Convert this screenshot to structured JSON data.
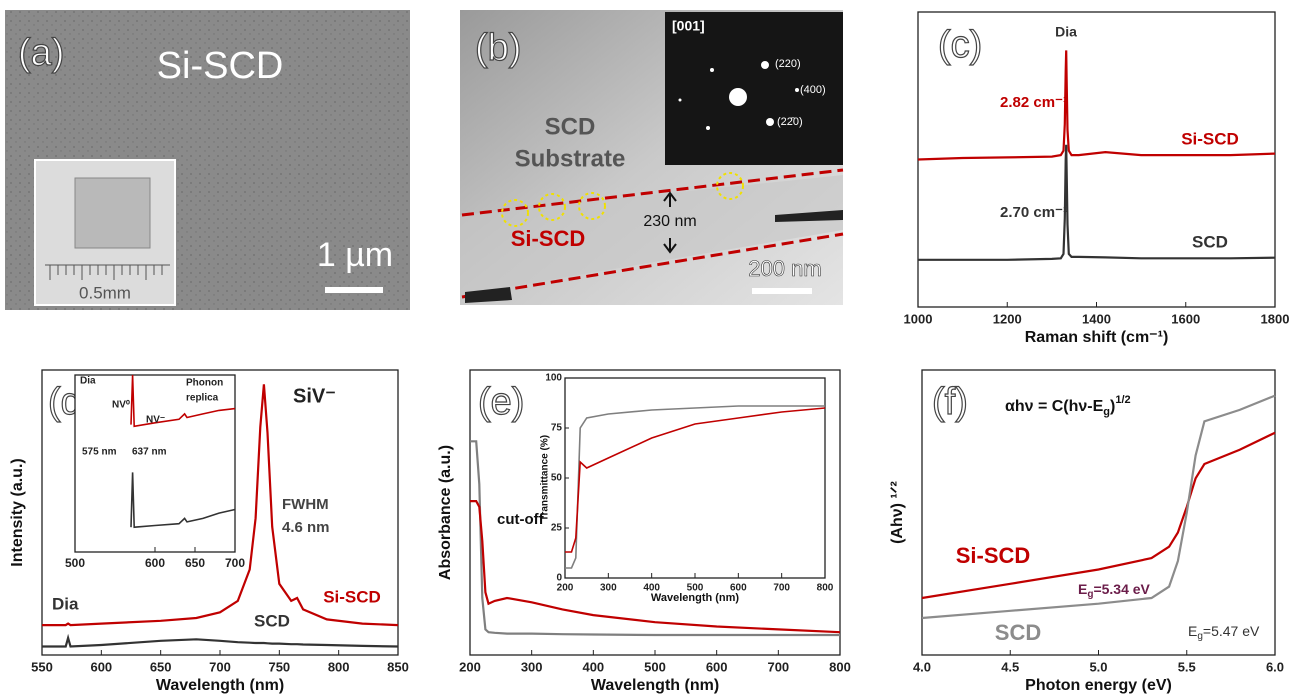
{
  "panels": [
    {
      "label": "(a)",
      "title": "Si-SCD",
      "scale_bar": "1 µm",
      "inset_scale": "0.5mm"
    },
    {
      "label": "(b)",
      "diffraction_zone": "[001]",
      "spots": [
        "(220)",
        "(400)",
        "(22̄0)"
      ],
      "region": [
        "SCD",
        "Substrate"
      ],
      "layer": "Si-SCD",
      "thickness": "230 nm",
      "scale_bar": "200 nm"
    }
  ],
  "chart_data": [
    {
      "type": "line",
      "label": "(c)",
      "xlabel": "Raman shift (cm⁻¹)",
      "xlim": [
        1000,
        1800
      ],
      "xticks": [
        1000,
        1200,
        1400,
        1600,
        1800
      ],
      "ylim": [
        0,
        100
      ],
      "x": [
        1000,
        1100,
        1200,
        1300,
        1320,
        1326,
        1329,
        1331,
        1332,
        1333,
        1335,
        1338,
        1344,
        1360,
        1420,
        1500,
        1600,
        1700,
        1800
      ],
      "series": [
        {
          "name": "Si-SCD",
          "color": "#c00000",
          "values": [
            50,
            50.5,
            50.7,
            51,
            51.5,
            53,
            62,
            80,
            87,
            78,
            60,
            53,
            51.5,
            51.5,
            52.5,
            51.5,
            51.5,
            51.5,
            52
          ]
        },
        {
          "name": "SCD",
          "color": "#333333",
          "values": [
            16,
            16,
            16,
            16.3,
            16.5,
            18,
            30,
            50,
            55,
            47,
            28,
            18,
            17,
            17,
            16.8,
            16.5,
            16.5,
            16.5,
            16.7
          ]
        }
      ],
      "annotations": [
        "Dia",
        "2.82 cm⁻¹",
        "2.70 cm⁻¹"
      ]
    },
    {
      "type": "line",
      "label": "(d)",
      "xlabel": "Wavelength (nm)",
      "ylabel": "Intensity (a.u.)",
      "xlim": [
        550,
        850
      ],
      "xticks": [
        550,
        600,
        650,
        700,
        750,
        800,
        850
      ],
      "ylim": [
        0,
        100
      ],
      "x": [
        550,
        570,
        572,
        574,
        600,
        650,
        680,
        700,
        715,
        725,
        730,
        734,
        737,
        740,
        744,
        750,
        760,
        765,
        770,
        790,
        820,
        850
      ],
      "series": [
        {
          "name": "Si-SCD",
          "color": "#c00000",
          "values": [
            10.5,
            10.5,
            11,
            10.5,
            11,
            12,
            13,
            15,
            19,
            30,
            48,
            80,
            95,
            78,
            45,
            25,
            19,
            20,
            16,
            12.5,
            11,
            10.5
          ]
        },
        {
          "name": "SCD",
          "color": "#333333",
          "values": [
            3,
            3,
            6,
            3,
            3.5,
            5,
            5.5,
            5,
            4.5,
            4.3,
            4.2,
            4.2,
            4.2,
            4.1,
            4,
            4,
            3.8,
            3.8,
            3.7,
            3.5,
            3.2,
            3
          ]
        }
      ],
      "annotations": [
        "SiV⁻",
        "FWHM",
        "4.6 nm",
        "Dia"
      ],
      "inset": {
        "type": "line",
        "xlim": [
          500,
          700
        ],
        "xticks": [
          500,
          600,
          650,
          700
        ],
        "ylim": [
          0,
          100
        ],
        "x": [
          500,
          560,
          570,
          572,
          574,
          600,
          630,
          637,
          640,
          660,
          680,
          700
        ],
        "series": [
          {
            "color": "#c00000",
            "values": [
              null,
              null,
              72,
              100,
              71,
              73,
              75,
              78,
              76,
              78,
              80,
              81
            ]
          },
          {
            "color": "#333333",
            "values": [
              null,
              null,
              14,
              45,
              14,
              15,
              16,
              19,
              17,
              19,
              22,
              24
            ]
          }
        ],
        "annotations": [
          "Dia",
          "NV⁰",
          "NV⁻",
          "575 nm",
          "637 nm",
          "Phonon",
          "replica"
        ]
      }
    },
    {
      "type": "line",
      "label": "(e)",
      "xlabel": "Wavelength (nm)",
      "ylabel": "Absorbance (a.u.)",
      "xlim": [
        200,
        800
      ],
      "xticks": [
        200,
        300,
        400,
        500,
        600,
        700,
        800
      ],
      "ylim": [
        0,
        100
      ],
      "x": [
        200,
        210,
        215,
        220,
        225,
        230,
        240,
        260,
        300,
        350,
        400,
        500,
        600,
        700,
        800
      ],
      "series": [
        {
          "name": "SCD",
          "color": "#7f7f7f",
          "values": [
            75,
            75,
            60,
            20,
            9,
            8,
            7.8,
            7.5,
            7.5,
            7.3,
            7.2,
            7,
            7,
            7,
            7
          ]
        },
        {
          "name": "Si-SCD",
          "color": "#c00000",
          "values": [
            54,
            54,
            52,
            40,
            22,
            18,
            19,
            20,
            18.5,
            16,
            14,
            11.5,
            10,
            9,
            8
          ]
        }
      ],
      "annotations": [
        "cut-off"
      ],
      "inset": {
        "type": "line",
        "xlabel": "Wavelength (nm)",
        "ylabel": "Transmittance (%)",
        "xlim": [
          200,
          800
        ],
        "xticks": [
          200,
          300,
          400,
          500,
          600,
          700,
          800
        ],
        "ylim": [
          0,
          100
        ],
        "yticks": [
          0,
          25,
          50,
          75,
          100
        ],
        "x": [
          200,
          215,
          225,
          235,
          250,
          300,
          400,
          500,
          600,
          700,
          800
        ],
        "series": [
          {
            "color": "#7f7f7f",
            "values": [
              5,
              5,
              10,
              75,
              80,
              82,
              84,
              85,
              86,
              86,
              86
            ]
          },
          {
            "color": "#c00000",
            "values": [
              13,
              13,
              20,
              58,
              55,
              60,
              70,
              77,
              80,
              83,
              85
            ]
          }
        ]
      }
    },
    {
      "type": "line",
      "label": "(f)",
      "xlabel": "Photon energy (eV)",
      "ylabel": "(Ahν) ¹ᐟ²",
      "xlim": [
        4,
        6
      ],
      "xticks": [
        {
          "value": 4,
          "label": "4.0"
        },
        {
          "value": 4.5,
          "label": "4.5"
        },
        {
          "value": 5,
          "label": "5.0"
        },
        {
          "value": 5.5,
          "label": "5.5"
        },
        {
          "value": 6,
          "label": "6.0"
        }
      ],
      "ylim": [
        0,
        100
      ],
      "x": [
        4.0,
        4.5,
        5.0,
        5.3,
        5.4,
        5.45,
        5.5,
        5.55,
        5.6,
        5.8,
        6.0
      ],
      "series": [
        {
          "name": "Si-SCD",
          "color": "#c00000",
          "values": [
            20,
            25,
            30,
            34,
            38,
            43,
            52,
            62,
            67,
            72,
            78
          ]
        },
        {
          "name": "SCD",
          "color": "#8c8c8c",
          "values": [
            13,
            15.5,
            18,
            20,
            24,
            33,
            50,
            70,
            82,
            86,
            91
          ]
        }
      ],
      "formula": [
        "αhν = C(hν-E",
        "g",
        ")",
        "1/2"
      ],
      "gap_labels": [
        [
          "E",
          "g",
          "=5.34 eV"
        ],
        [
          "E",
          "g",
          "=5.47 eV"
        ]
      ]
    }
  ]
}
